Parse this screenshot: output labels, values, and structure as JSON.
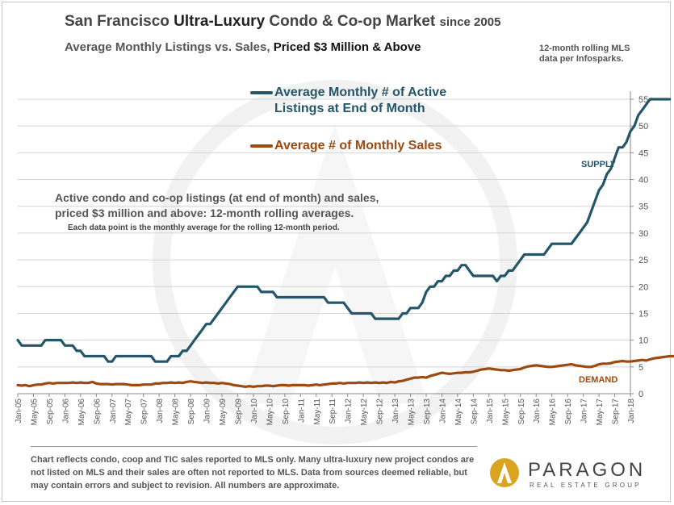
{
  "header": {
    "title_part1": "San Francisco ",
    "title_part2": "Ultra-Luxury",
    "title_part3": " Condo & Co-op Market ",
    "title_part4": "since 2005",
    "subtitle_part1": "Average Monthly Listings vs. Sales, ",
    "subtitle_part2": "Priced $3 Million & Above",
    "source_line1": "12-month rolling MLS",
    "source_line2": "data per Infosparks."
  },
  "legend": {
    "listings_line1": "Average Monthly # of Active",
    "listings_line2": "Listings at End of Month",
    "sales": "Average # of Monthly Sales"
  },
  "annotation": {
    "line1": "Active condo and co-op listings (at end of month) and sales,",
    "line2": "priced $3 million and above: 12-month rolling averages.",
    "detail": "Each data point is the monthly average for the rolling 12-month period."
  },
  "tags": {
    "supply": "SUPPLY",
    "demand": "DEMAND"
  },
  "footer": {
    "note": "Chart reflects condo, coop and TIC sales reported to MLS only. Many ultra-luxury new project condos are not listed on MLS and their sales are often not reported to MLS. Data from sources deemed reliable, but may contain errors and subject to revision. All numbers are approximate.",
    "logo_name": "PARAGON",
    "logo_tagline": "REAL ESTATE GROUP"
  },
  "colors": {
    "listings": "#24566a",
    "sales": "#9c4a12",
    "grid": "#d4d4d4",
    "logo_gold": "#d9a420"
  },
  "chart_data": {
    "type": "line",
    "x_tick_labels": [
      "Jan-05",
      "May-05",
      "Sep-05",
      "Jan-06",
      "May-06",
      "Sep-06",
      "Jan-07",
      "May-07",
      "Sep-07",
      "Jan-08",
      "May-08",
      "Sep-08",
      "Jan-09",
      "May-09",
      "Sep-09",
      "Jan-10",
      "May-10",
      "Sep-10",
      "Jan-11",
      "May-11",
      "Sep-11",
      "Jan-12",
      "May-12",
      "Sep-12",
      "Jan-13",
      "May-13",
      "Sep-13",
      "Jan-14",
      "May-14",
      "Sep-14",
      "Jan-15",
      "May-15",
      "Sep-15",
      "Jan-16",
      "May-16",
      "Sep-16",
      "Jan-17",
      "May-17",
      "Sep-17",
      "Jan-18"
    ],
    "y_ticks": [
      0,
      5,
      10,
      15,
      20,
      25,
      30,
      35,
      40,
      45,
      50,
      55
    ],
    "ylim": [
      0,
      57
    ],
    "y_axis_side": "right",
    "grid": true,
    "series": [
      {
        "name": "Average Monthly # of Active Listings at End of Month",
        "values": [
          10,
          9,
          9,
          9,
          9,
          9,
          9,
          10,
          10,
          10,
          10,
          10,
          9,
          9,
          9,
          8,
          8,
          7,
          7,
          7,
          7,
          7,
          7,
          6,
          6,
          7,
          7,
          7,
          7,
          7,
          7,
          7,
          7,
          7,
          7,
          6,
          6,
          6,
          6,
          7,
          7,
          7,
          8,
          8,
          9,
          10,
          11,
          12,
          13,
          13,
          14,
          15,
          16,
          17,
          18,
          19,
          20,
          20,
          20,
          20,
          20,
          20,
          19,
          19,
          19,
          19,
          18,
          18,
          18,
          18,
          18,
          18,
          18,
          18,
          18,
          18,
          18,
          18,
          18,
          17,
          17,
          17,
          17,
          17,
          16,
          15,
          15,
          15,
          15,
          15,
          15,
          14,
          14,
          14,
          14,
          14,
          14,
          14,
          15,
          15,
          16,
          16,
          16,
          17,
          19,
          20,
          20,
          21,
          21,
          22,
          22,
          23,
          23,
          24,
          24,
          23,
          22,
          22,
          22,
          22,
          22,
          22,
          21,
          22,
          22,
          23,
          23,
          24,
          25,
          26,
          26,
          26,
          26,
          26,
          26,
          27,
          28,
          28,
          28,
          28,
          28,
          28,
          29,
          30,
          31,
          32,
          34,
          36,
          38,
          39,
          41,
          42,
          44,
          46,
          46,
          47,
          49,
          50,
          52,
          53,
          54,
          55,
          55,
          55,
          55,
          55,
          55
        ]
      },
      {
        "name": "Average # of Monthly Sales",
        "values": [
          1.6,
          1.5,
          1.6,
          1.4,
          1.6,
          1.7,
          1.7,
          1.9,
          2.0,
          1.9,
          2.0,
          2.0,
          2.0,
          2.0,
          2.1,
          2.0,
          2.1,
          2.0,
          2.0,
          2.2,
          1.9,
          1.8,
          1.8,
          1.8,
          1.7,
          1.8,
          1.8,
          1.8,
          1.7,
          1.6,
          1.6,
          1.6,
          1.7,
          1.7,
          1.7,
          1.9,
          1.9,
          2.0,
          2.0,
          2.1,
          2.0,
          2.1,
          2.0,
          2.2,
          2.3,
          2.2,
          2.1,
          2.0,
          2.1,
          2.0,
          2.0,
          1.9,
          2.0,
          1.9,
          1.8,
          1.6,
          1.5,
          1.4,
          1.3,
          1.4,
          1.3,
          1.4,
          1.4,
          1.5,
          1.5,
          1.4,
          1.5,
          1.6,
          1.6,
          1.5,
          1.6,
          1.6,
          1.6,
          1.6,
          1.5,
          1.6,
          1.7,
          1.6,
          1.7,
          1.8,
          1.9,
          1.9,
          2.0,
          1.9,
          2.0,
          2.0,
          2.0,
          2.1,
          2.0,
          2.1,
          2.0,
          2.1,
          2.0,
          2.1,
          2.0,
          2.2,
          2.1,
          2.3,
          2.4,
          2.6,
          2.8,
          3.0,
          3.0,
          3.1,
          3.0,
          3.3,
          3.5,
          3.7,
          3.9,
          3.8,
          3.7,
          3.8,
          3.9,
          3.9,
          4.0,
          4.0,
          4.1,
          4.3,
          4.5,
          4.6,
          4.7,
          4.6,
          4.5,
          4.4,
          4.4,
          4.3,
          4.4,
          4.5,
          4.6,
          4.9,
          5.1,
          5.2,
          5.3,
          5.2,
          5.1,
          5.0,
          5.0,
          5.1,
          5.2,
          5.3,
          5.4,
          5.5,
          5.3,
          5.2,
          5.1,
          5.0,
          5.0,
          5.2,
          5.5,
          5.6,
          5.6,
          5.7,
          5.9,
          6.0,
          6.1,
          6.0,
          6.0,
          6.1,
          6.2,
          6.3,
          6.2,
          6.4,
          6.6,
          6.7,
          6.8,
          6.9,
          7.0,
          7.0,
          7.0
        ]
      }
    ]
  }
}
